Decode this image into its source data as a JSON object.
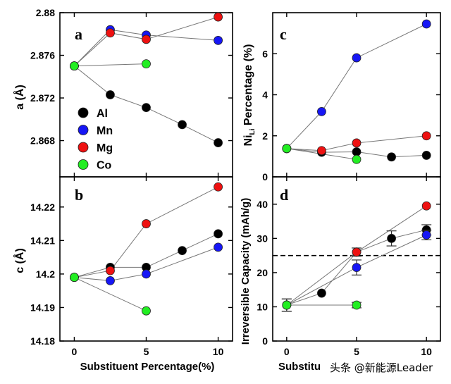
{
  "figure": {
    "watermark": "头条 @新能源Leader",
    "colors": {
      "Al": "#000000",
      "Mn": "#1616f5",
      "Mg": "#ee1111",
      "Co": "#22ee22"
    }
  },
  "chart_data": [
    {
      "panel": "a",
      "type": "scatter",
      "xlabel": "",
      "ylabel": "a (Å)",
      "xlim": [
        -1,
        11
      ],
      "ylim": [
        2.8646,
        2.88
      ],
      "xticks": [
        0,
        5,
        10
      ],
      "xticklabels": [
        "",
        "",
        ""
      ],
      "yticks": [
        2.868,
        2.872,
        2.876,
        2.88
      ],
      "yticklabels": [
        "2.868",
        "2.872",
        "2.876",
        "2.88"
      ],
      "legend": {
        "position": "lower-left",
        "entries": [
          "Al",
          "Mn",
          "Mg",
          "Co"
        ]
      },
      "series": [
        {
          "name": "Al",
          "x": [
            0,
            2.5,
            5,
            7.5,
            10
          ],
          "y": [
            2.875,
            2.8723,
            2.8711,
            2.8695,
            2.8678
          ]
        },
        {
          "name": "Mn",
          "x": [
            0,
            2.5,
            5,
            10
          ],
          "y": [
            2.875,
            2.8784,
            2.8779,
            2.8774
          ]
        },
        {
          "name": "Mg",
          "x": [
            0,
            2.5,
            5,
            10
          ],
          "y": [
            2.875,
            2.8781,
            2.8775,
            2.8796
          ]
        },
        {
          "name": "Co",
          "x": [
            0,
            5
          ],
          "y": [
            2.875,
            2.8752
          ]
        }
      ]
    },
    {
      "panel": "b",
      "type": "scatter",
      "xlabel": "Substituent Percentage(%)",
      "ylabel": "c (Å)",
      "xlim": [
        -1,
        11
      ],
      "ylim": [
        14.18,
        14.229
      ],
      "xticks": [
        0,
        5,
        10
      ],
      "xticklabels": [
        "0",
        "5",
        "10"
      ],
      "yticks": [
        14.18,
        14.19,
        14.2,
        14.21,
        14.22
      ],
      "yticklabels": [
        "14.18",
        "14.19",
        "14.2",
        "14.21",
        "14.22"
      ],
      "series": [
        {
          "name": "Al",
          "x": [
            0,
            2.5,
            5,
            7.5,
            10
          ],
          "y": [
            14.199,
            14.202,
            14.202,
            14.207,
            14.212
          ]
        },
        {
          "name": "Mn",
          "x": [
            0,
            2.5,
            5,
            10
          ],
          "y": [
            14.199,
            14.198,
            14.2,
            14.208
          ]
        },
        {
          "name": "Mg",
          "x": [
            0,
            2.5,
            5,
            10
          ],
          "y": [
            14.199,
            14.201,
            14.215,
            14.226
          ]
        },
        {
          "name": "Co",
          "x": [
            0,
            5
          ],
          "y": [
            14.199,
            14.189
          ]
        }
      ]
    },
    {
      "panel": "c",
      "type": "scatter",
      "xlabel": "",
      "ylabel_main": "Ni",
      "ylabel_sub": "Li",
      "ylabel_rest": " Percentage (%)",
      "xlim": [
        -1,
        11
      ],
      "ylim": [
        0,
        8
      ],
      "xticks": [
        0,
        5,
        10
      ],
      "xticklabels": [
        "",
        "",
        ""
      ],
      "yticks": [
        0,
        2,
        4,
        6
      ],
      "yticklabels": [
        "0",
        "2",
        "4",
        "6"
      ],
      "series": [
        {
          "name": "Al",
          "x": [
            0,
            2.5,
            5,
            7.5,
            10
          ],
          "y": [
            1.38,
            1.2,
            1.22,
            0.97,
            1.05
          ]
        },
        {
          "name": "Mn",
          "x": [
            0,
            2.5,
            5,
            10
          ],
          "y": [
            1.38,
            3.18,
            5.8,
            7.45
          ]
        },
        {
          "name": "Mg",
          "x": [
            0,
            2.5,
            5,
            10
          ],
          "y": [
            1.38,
            1.28,
            1.65,
            2.0
          ]
        },
        {
          "name": "Co",
          "x": [
            0,
            5
          ],
          "y": [
            1.38,
            0.85
          ]
        }
      ]
    },
    {
      "panel": "d",
      "type": "scatter",
      "xlabel": "Substitu",
      "ylabel": "Irreversible Capacity (mAh/g)",
      "xlim": [
        -1,
        11
      ],
      "ylim": [
        0,
        48
      ],
      "xticks": [
        0,
        5,
        10
      ],
      "xticklabels": [
        "0",
        "5",
        "10"
      ],
      "yticks": [
        0,
        10,
        20,
        30,
        40
      ],
      "yticklabels": [
        "0",
        "10",
        "20",
        "30",
        "40"
      ],
      "reference_line": {
        "y": 25,
        "style": "dashed"
      },
      "series": [
        {
          "name": "Al",
          "x": [
            0,
            2.5,
            5,
            7.5,
            10
          ],
          "y": [
            10.5,
            14.0,
            26.0,
            30.0,
            32.5
          ],
          "err": [
            1.8,
            0,
            0,
            2.2,
            1.5
          ]
        },
        {
          "name": "Mn",
          "x": [
            0,
            5,
            10
          ],
          "y": [
            10.5,
            21.5,
            31.0
          ],
          "err": [
            1.8,
            2.2,
            1.4
          ]
        },
        {
          "name": "Mg",
          "x": [
            0,
            5,
            10
          ],
          "y": [
            10.5,
            26.0,
            39.5
          ],
          "err": [
            0,
            1.2,
            0
          ]
        },
        {
          "name": "Co",
          "x": [
            0,
            5
          ],
          "y": [
            10.5,
            10.5
          ],
          "err": [
            0,
            0.8
          ]
        }
      ]
    }
  ]
}
